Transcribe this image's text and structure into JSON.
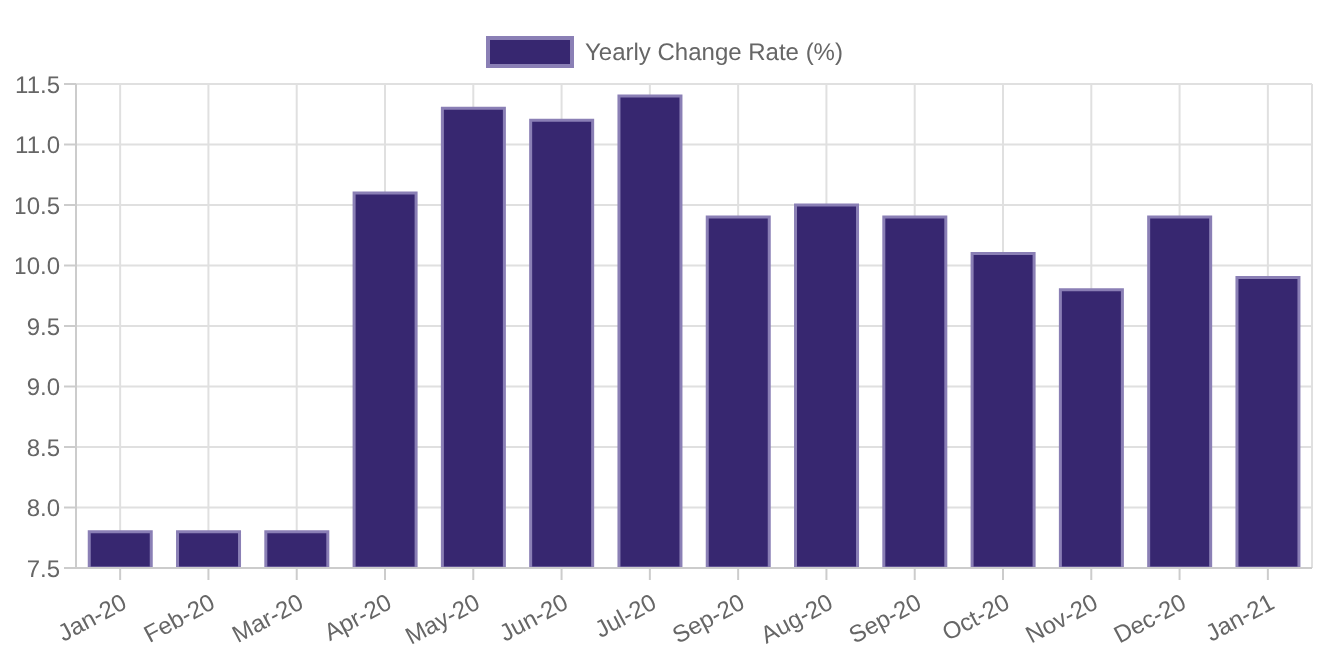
{
  "chart_data": {
    "type": "bar",
    "categories": [
      "Jan-20",
      "Feb-20",
      "Mar-20",
      "Apr-20",
      "May-20",
      "Jun-20",
      "Jul-20",
      "Sep-20",
      "Aug-20",
      "Sep-20",
      "Oct-20",
      "Nov-20",
      "Dec-20",
      "Jan-21"
    ],
    "series": [
      {
        "name": "Yearly Change Rate (%)",
        "color": "#372770",
        "values": [
          7.8,
          7.8,
          7.8,
          10.6,
          11.3,
          11.2,
          11.4,
          10.4,
          10.5,
          10.4,
          10.1,
          9.8,
          10.4,
          9.9
        ]
      }
    ],
    "ylim": [
      7.5,
      11.5
    ],
    "yticks": [
      7.5,
      {
        "value": 8,
        "label": "8.0"
      },
      8.5,
      {
        "value": 9,
        "label": "9.0"
      },
      9.5,
      {
        "value": 10,
        "label": "10.0"
      },
      10.5,
      {
        "value": 11,
        "label": "11.0"
      },
      11.5
    ],
    "grid": true,
    "legend": "top"
  }
}
